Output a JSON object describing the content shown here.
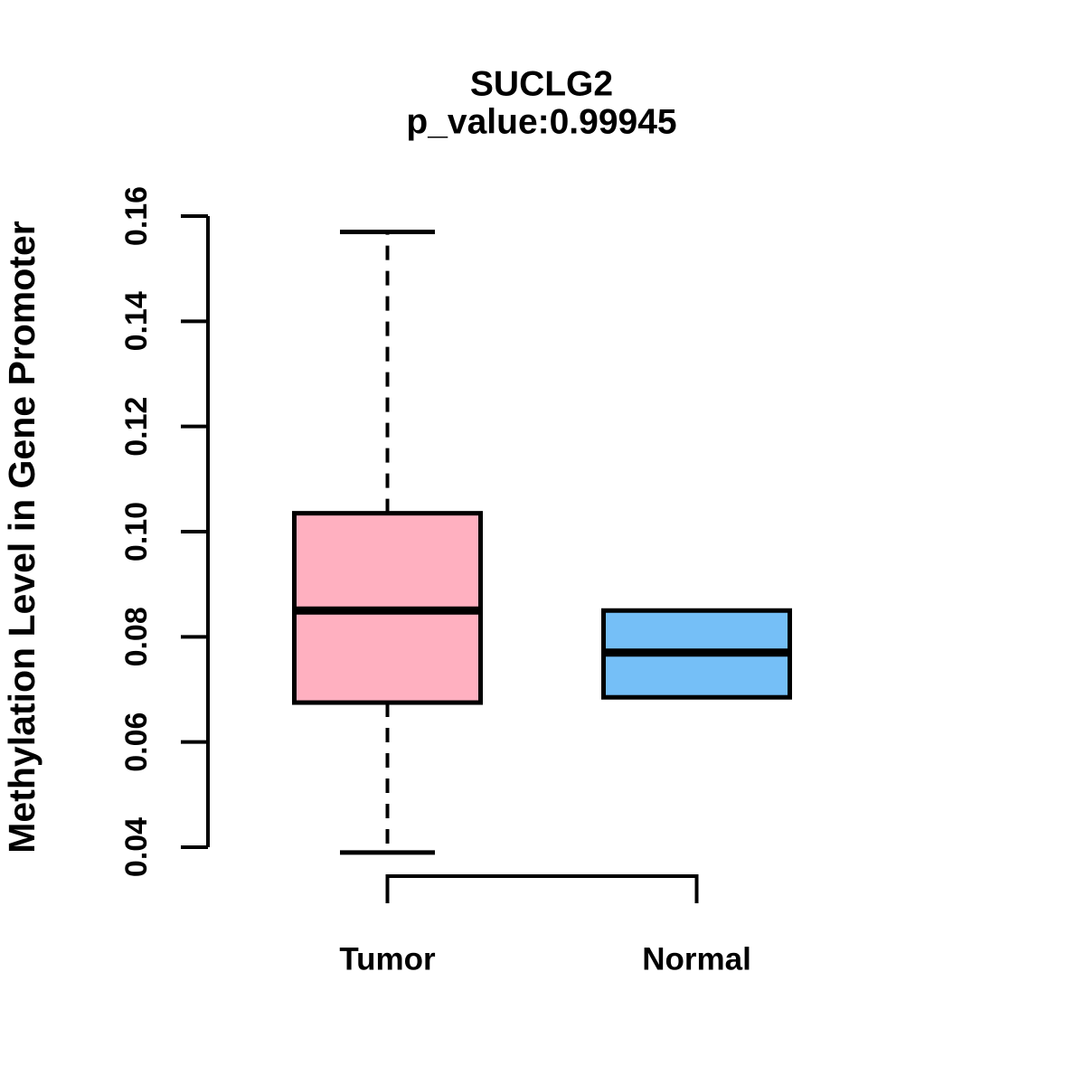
{
  "figure": {
    "title_line1": "SUCLG2",
    "title_line2": "p_value:0.99945"
  },
  "axes": {
    "y_label": "Methylation Level in Gene Promoter",
    "y_tick_labels": [
      "0.04",
      "0.06",
      "0.08",
      "0.10",
      "0.12",
      "0.14",
      "0.16"
    ],
    "x_labels": [
      "Tumor",
      "Normal"
    ]
  },
  "chart_data": {
    "type": "boxplot",
    "title": "SUCLG2",
    "subtitle": "p_value:0.99945",
    "gene": "SUCLG2",
    "p_value": 0.99945,
    "ylabel": "Methylation Level in Gene Promoter",
    "xlabel": "",
    "ylim": [
      0.04,
      0.16
    ],
    "y_ticks": [
      0.04,
      0.06,
      0.08,
      0.1,
      0.12,
      0.14,
      0.16
    ],
    "grid": false,
    "legend": "none",
    "background": "#FFFFFF",
    "stroke_color": "#000000",
    "categories": [
      "Tumor",
      "Normal"
    ],
    "series": [
      {
        "name": "Tumor",
        "fill_color": "#FFB0C0",
        "whisker_low": 0.039,
        "q1": 0.0675,
        "median": 0.085,
        "q3": 0.1035,
        "whisker_high": 0.157,
        "whiskers_visible": true,
        "whisker_style": "dashed"
      },
      {
        "name": "Normal",
        "fill_color": "#75BFF7",
        "whisker_low": 0.0685,
        "q1": 0.0685,
        "median": 0.077,
        "q3": 0.085,
        "whisker_high": 0.085,
        "whiskers_visible": false,
        "whisker_style": "dashed"
      }
    ],
    "comparison_bracket": {
      "connects": [
        "Tumor",
        "Normal"
      ],
      "position": "below-plot"
    }
  }
}
